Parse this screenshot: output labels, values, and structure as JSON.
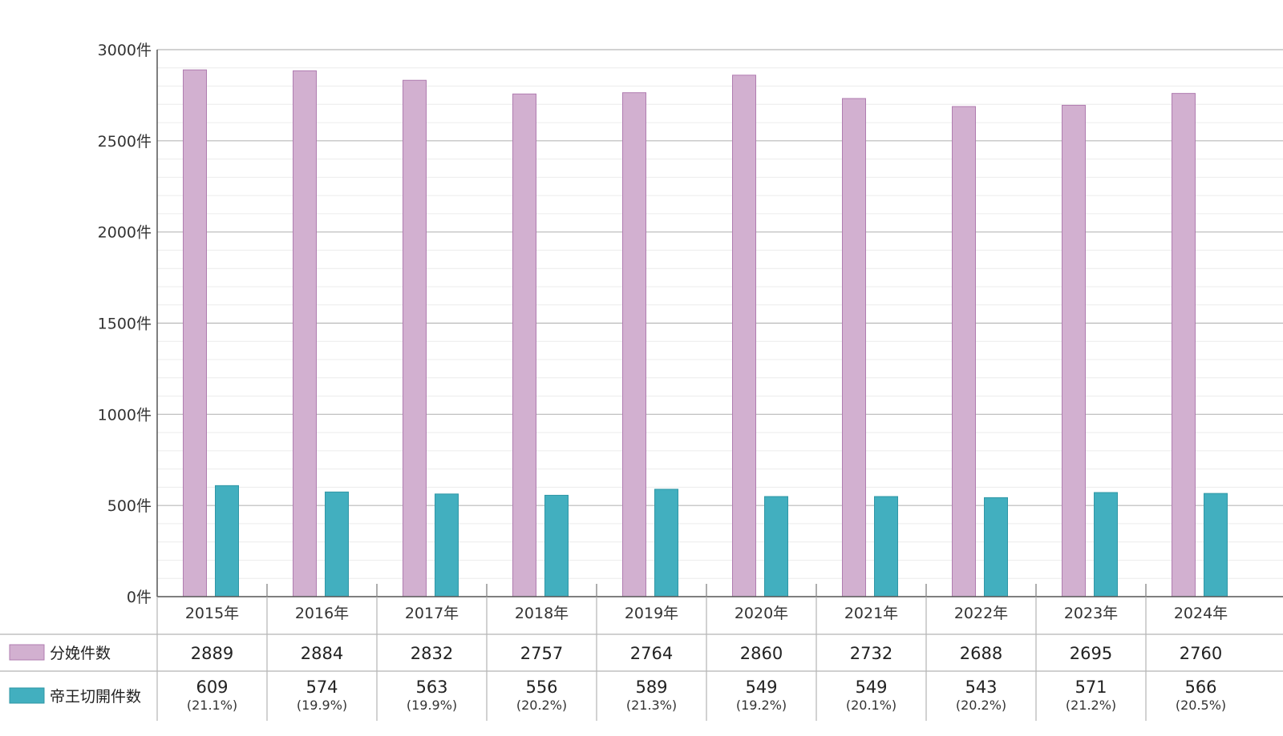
{
  "chart_data": {
    "type": "bar",
    "title": "",
    "xlabel": "",
    "ylabel": "",
    "ylim": [
      0,
      3000
    ],
    "yticks": [
      0,
      500,
      1000,
      1500,
      2000,
      2500,
      3000
    ],
    "ytick_labels": [
      "0件",
      "500件",
      "1000件",
      "1500件",
      "2000件",
      "2500件",
      "3000件"
    ],
    "categories": [
      "2015年",
      "2016年",
      "2017年",
      "2018年",
      "2019年",
      "2020年",
      "2021年",
      "2022年",
      "2023年",
      "2024年"
    ],
    "grid": true,
    "legend": "table-left",
    "series": [
      {
        "name": "分娩件数",
        "color": "#d2b0d0",
        "values": [
          2889,
          2884,
          2832,
          2757,
          2764,
          2860,
          2732,
          2688,
          2695,
          2760
        ],
        "labels": [
          "2889",
          "2884",
          "2832",
          "2757",
          "2764",
          "2860",
          "2732",
          "2688",
          "2695",
          "2760"
        ]
      },
      {
        "name": "帝王切開件数",
        "color": "#42afbf",
        "values": [
          609,
          574,
          563,
          556,
          589,
          549,
          549,
          543,
          571,
          566
        ],
        "labels": [
          "609",
          "574",
          "563",
          "556",
          "589",
          "549",
          "549",
          "543",
          "571",
          "566"
        ],
        "percent_labels": [
          "(21.1%)",
          "(19.9%)",
          "(19.9%)",
          "(20.2%)",
          "(21.3%)",
          "(19.2%)",
          "(20.1%)",
          "(20.2%)",
          "(21.2%)",
          "(20.5%)"
        ]
      }
    ]
  }
}
